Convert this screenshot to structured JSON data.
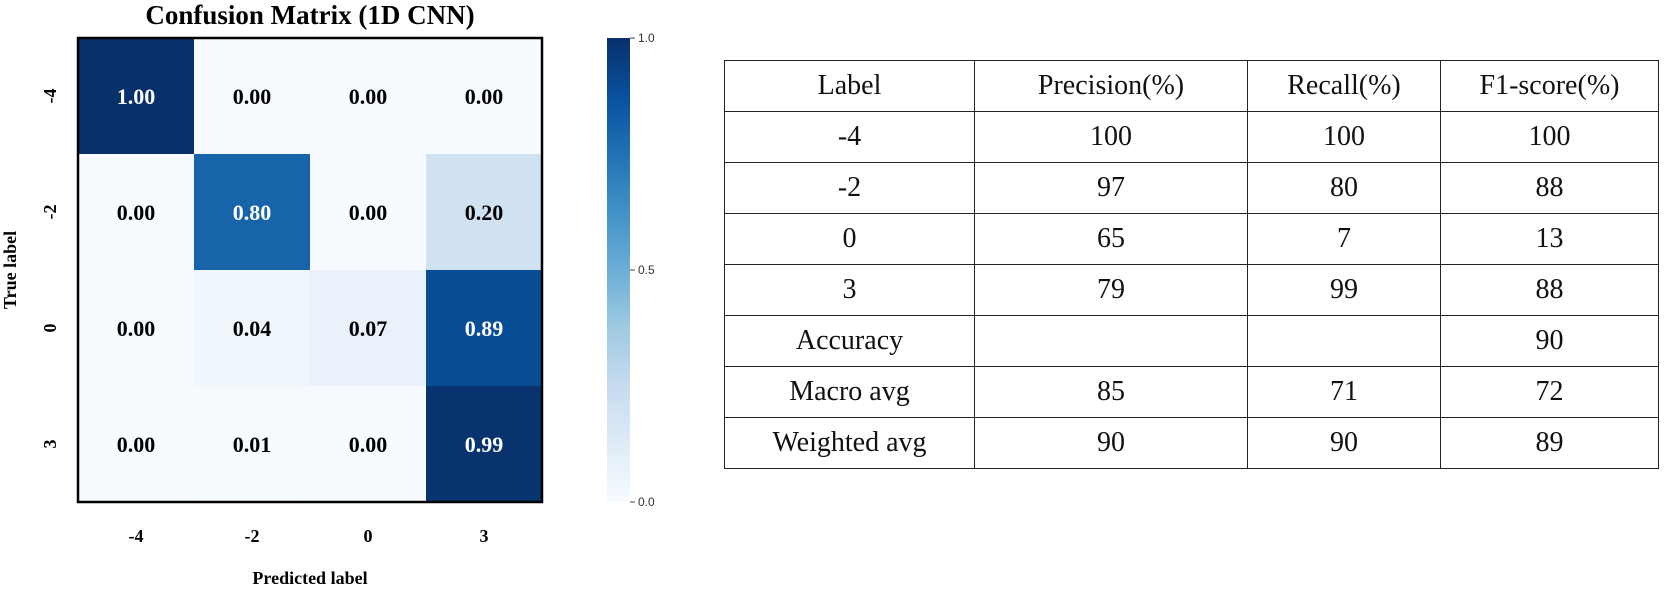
{
  "chart_data": {
    "type": "heatmap",
    "title": "Confusion Matrix (1D CNN)",
    "xlabel": "Predicted label",
    "ylabel": "True label",
    "x_categories": [
      "-4",
      "-2",
      "0",
      "3"
    ],
    "y_categories": [
      "-4",
      "-2",
      "0",
      "3"
    ],
    "values": [
      [
        1.0,
        0.0,
        0.0,
        0.0
      ],
      [
        0.0,
        0.8,
        0.0,
        0.2
      ],
      [
        0.0,
        0.04,
        0.07,
        0.89
      ],
      [
        0.0,
        0.01,
        0.0,
        0.99
      ]
    ],
    "cell_labels": [
      [
        "1.00",
        "0.00",
        "0.00",
        "0.00"
      ],
      [
        "0.00",
        "0.80",
        "0.00",
        "0.20"
      ],
      [
        "0.00",
        "0.04",
        "0.07",
        "0.89"
      ],
      [
        "0.00",
        "0.01",
        "0.00",
        "0.99"
      ]
    ],
    "colormap": "Blues",
    "colorbar": {
      "range": [
        0.0,
        1.0
      ],
      "ticks": [
        "0.0",
        "0.5",
        "1.0"
      ]
    },
    "grid": false
  },
  "table": {
    "headers": [
      "Label",
      "Precision(%)",
      "Recall(%)",
      "F1-score(%)"
    ],
    "rows": [
      [
        "-4",
        "100",
        "100",
        "100"
      ],
      [
        "-2",
        "97",
        "80",
        "88"
      ],
      [
        "0",
        "65",
        "7",
        "13"
      ],
      [
        "3",
        "79",
        "99",
        "88"
      ],
      [
        "Accuracy",
        "",
        "",
        "90"
      ],
      [
        "Macro avg",
        "85",
        "71",
        "72"
      ],
      [
        "Weighted avg",
        "90",
        "90",
        "89"
      ]
    ]
  }
}
